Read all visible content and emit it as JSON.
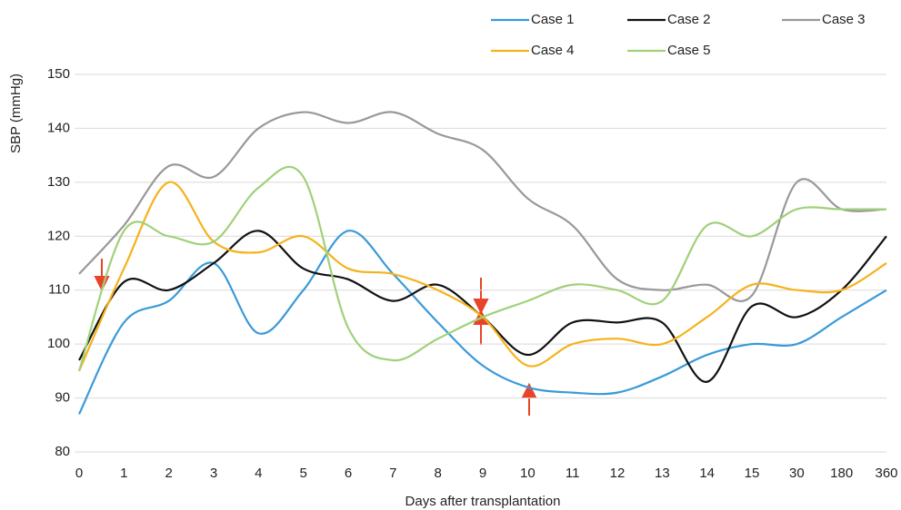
{
  "chart_data": {
    "type": "line",
    "y_label": "SBP (mmHg)",
    "x_label": "Days after transplantation",
    "categories": [
      "0",
      "1",
      "2",
      "3",
      "4",
      "5",
      "6",
      "7",
      "8",
      "9",
      "10",
      "11",
      "12",
      "13",
      "14",
      "15",
      "30",
      "180",
      "360"
    ],
    "ylim": [
      80,
      150
    ],
    "yticks": [
      80,
      90,
      100,
      110,
      120,
      130,
      140,
      150
    ],
    "grid": true,
    "series": [
      {
        "name": "Case 1",
        "color": "#3a9ad9",
        "values": [
          87,
          104,
          108,
          115,
          102,
          110,
          121,
          113,
          104,
          96,
          92,
          91,
          91,
          94,
          98,
          100,
          100,
          105,
          110
        ]
      },
      {
        "name": "Case 2",
        "color": "#111111",
        "values": [
          97,
          111.5,
          110,
          115,
          121,
          114,
          112,
          108,
          111,
          105,
          98,
          104,
          104,
          104,
          93,
          107,
          105,
          110,
          120
        ]
      },
      {
        "name": "Case 3",
        "color": "#999999",
        "values": [
          113,
          122,
          133,
          131,
          140,
          143,
          141,
          143,
          139,
          136,
          127,
          122,
          112,
          110,
          111,
          109,
          130,
          125,
          125
        ]
      },
      {
        "name": "Case 4",
        "color": "#f5b21b",
        "values": [
          95,
          114,
          130,
          119,
          117,
          120,
          114,
          113,
          110,
          105,
          96,
          100,
          101,
          100,
          105,
          111,
          110,
          110,
          115
        ]
      },
      {
        "name": "Case 5",
        "color": "#9fd17a",
        "values": [
          95,
          121,
          120,
          119,
          129,
          131,
          103,
          97,
          101,
          105,
          108,
          111,
          110,
          108,
          122,
          120,
          125,
          125,
          125
        ]
      }
    ]
  }
}
